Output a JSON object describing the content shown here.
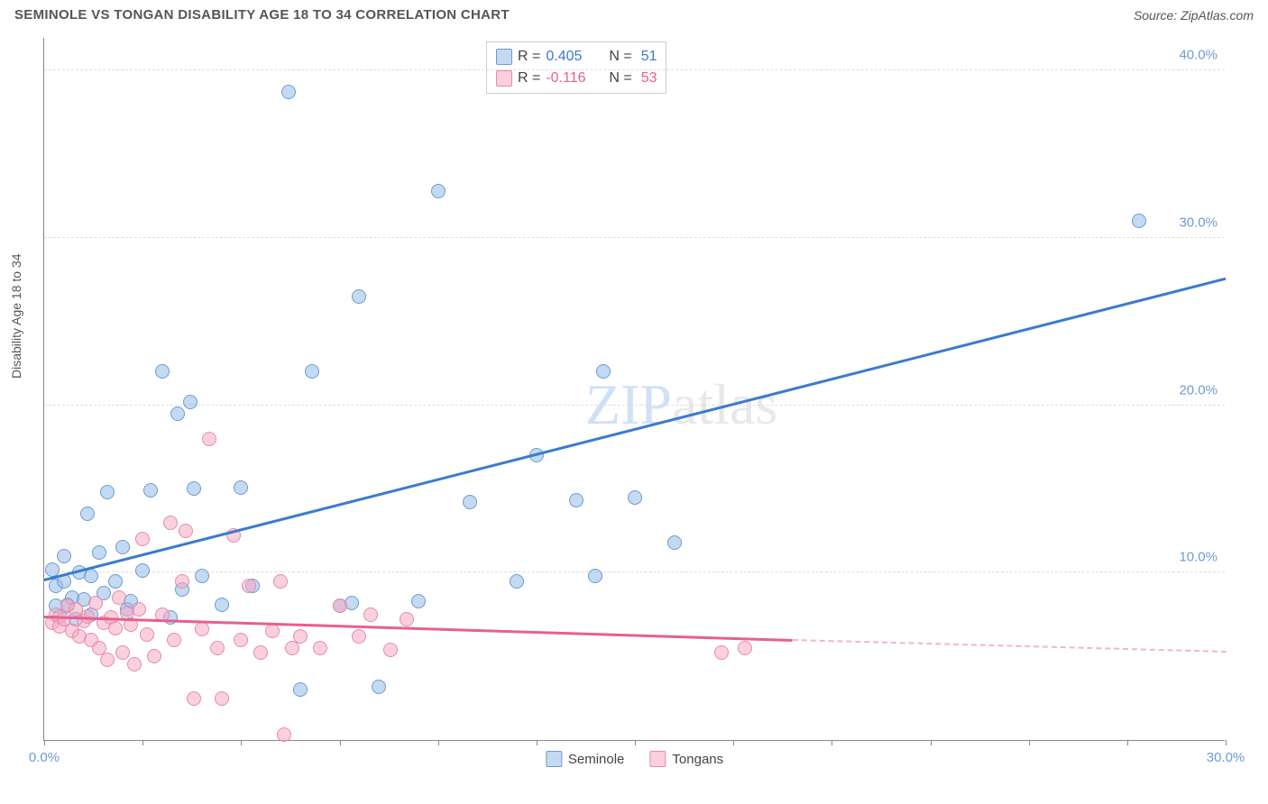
{
  "title": "SEMINOLE VS TONGAN DISABILITY AGE 18 TO 34 CORRELATION CHART",
  "source": "Source: ZipAtlas.com",
  "y_axis_label": "Disability Age 18 to 34",
  "watermark": {
    "part1": "ZIP",
    "part2": "atlas"
  },
  "chart": {
    "type": "scatter",
    "xlim": [
      0,
      30
    ],
    "ylim": [
      0,
      42
    ],
    "x_ticks": [
      0,
      2.5,
      5,
      7.5,
      10,
      12.5,
      15,
      17.5,
      20,
      22.5,
      25,
      27.5,
      30
    ],
    "x_tick_labels": {
      "0": "0.0%",
      "30": "30.0%"
    },
    "y_gridlines": [
      10,
      20,
      30,
      40
    ],
    "y_tick_labels": {
      "10": "10.0%",
      "20": "20.0%",
      "30": "30.0%",
      "40": "40.0%"
    },
    "axis_label_color": "#6b9bd8",
    "grid_color": "#dddddd",
    "series": [
      {
        "name": "Seminole",
        "fill": "rgba(147,187,230,0.55)",
        "stroke": "#6b9bd8",
        "trend_color": "#3a7bd0",
        "trend": {
          "x1": 0,
          "y1": 9.5,
          "x2": 30,
          "y2": 27.5
        },
        "points": [
          [
            0.2,
            10.2
          ],
          [
            0.3,
            8.0
          ],
          [
            0.3,
            9.2
          ],
          [
            0.4,
            7.4
          ],
          [
            0.5,
            11.0
          ],
          [
            0.5,
            9.5
          ],
          [
            0.6,
            8.1
          ],
          [
            0.7,
            8.5
          ],
          [
            0.8,
            7.2
          ],
          [
            0.9,
            10.0
          ],
          [
            1.0,
            8.4
          ],
          [
            1.1,
            13.5
          ],
          [
            1.2,
            9.8
          ],
          [
            1.2,
            7.5
          ],
          [
            1.4,
            11.2
          ],
          [
            1.5,
            8.8
          ],
          [
            1.6,
            14.8
          ],
          [
            1.8,
            9.5
          ],
          [
            2.0,
            11.5
          ],
          [
            2.1,
            7.8
          ],
          [
            2.2,
            8.3
          ],
          [
            2.5,
            10.1
          ],
          [
            2.7,
            14.9
          ],
          [
            3.0,
            22.0
          ],
          [
            3.2,
            7.3
          ],
          [
            3.4,
            19.5
          ],
          [
            3.5,
            9.0
          ],
          [
            3.7,
            20.2
          ],
          [
            3.8,
            15.0
          ],
          [
            4.0,
            9.8
          ],
          [
            4.5,
            8.1
          ],
          [
            5.0,
            15.1
          ],
          [
            5.3,
            9.2
          ],
          [
            6.2,
            38.7
          ],
          [
            6.5,
            3.0
          ],
          [
            6.8,
            22.0
          ],
          [
            7.5,
            8.0
          ],
          [
            7.8,
            8.2
          ],
          [
            8.0,
            26.5
          ],
          [
            8.5,
            3.2
          ],
          [
            9.5,
            8.3
          ],
          [
            10.0,
            32.8
          ],
          [
            10.8,
            14.2
          ],
          [
            12.0,
            9.5
          ],
          [
            12.5,
            17.0
          ],
          [
            13.5,
            14.3
          ],
          [
            14.0,
            9.8
          ],
          [
            14.2,
            22.0
          ],
          [
            15.0,
            14.5
          ],
          [
            16.0,
            11.8
          ],
          [
            27.8,
            31.0
          ]
        ]
      },
      {
        "name": "Tongans",
        "fill": "rgba(245,170,195,0.55)",
        "stroke": "#e88aa8",
        "trend_color": "#e85f8e",
        "trend": {
          "x1": 0,
          "y1": 7.3,
          "x2": 19,
          "y2": 5.9,
          "dash_to_x": 30,
          "dash_to_y": 5.2
        },
        "points": [
          [
            0.2,
            7.0
          ],
          [
            0.3,
            7.5
          ],
          [
            0.4,
            6.8
          ],
          [
            0.5,
            7.2
          ],
          [
            0.6,
            8.0
          ],
          [
            0.7,
            6.5
          ],
          [
            0.8,
            7.8
          ],
          [
            0.9,
            6.2
          ],
          [
            1.0,
            7.1
          ],
          [
            1.1,
            7.4
          ],
          [
            1.2,
            6.0
          ],
          [
            1.3,
            8.2
          ],
          [
            1.4,
            5.5
          ],
          [
            1.5,
            7.0
          ],
          [
            1.6,
            4.8
          ],
          [
            1.7,
            7.3
          ],
          [
            1.8,
            6.7
          ],
          [
            1.9,
            8.5
          ],
          [
            2.0,
            5.2
          ],
          [
            2.1,
            7.6
          ],
          [
            2.2,
            6.9
          ],
          [
            2.3,
            4.5
          ],
          [
            2.4,
            7.8
          ],
          [
            2.5,
            12.0
          ],
          [
            2.6,
            6.3
          ],
          [
            2.8,
            5.0
          ],
          [
            3.0,
            7.5
          ],
          [
            3.2,
            13.0
          ],
          [
            3.3,
            6.0
          ],
          [
            3.5,
            9.5
          ],
          [
            3.6,
            12.5
          ],
          [
            3.8,
            2.5
          ],
          [
            4.0,
            6.6
          ],
          [
            4.2,
            18.0
          ],
          [
            4.4,
            5.5
          ],
          [
            4.5,
            2.5
          ],
          [
            4.8,
            12.2
          ],
          [
            5.0,
            6.0
          ],
          [
            5.2,
            9.2
          ],
          [
            5.5,
            5.2
          ],
          [
            5.8,
            6.5
          ],
          [
            6.0,
            9.5
          ],
          [
            6.1,
            0.3
          ],
          [
            6.3,
            5.5
          ],
          [
            6.5,
            6.2
          ],
          [
            7.0,
            5.5
          ],
          [
            7.5,
            8.0
          ],
          [
            8.0,
            6.2
          ],
          [
            8.3,
            7.5
          ],
          [
            8.8,
            5.4
          ],
          [
            9.2,
            7.2
          ],
          [
            17.2,
            5.2
          ],
          [
            17.8,
            5.5
          ]
        ]
      }
    ]
  },
  "stats": [
    {
      "series": 0,
      "r_label": "R =",
      "r": "0.405",
      "n_label": "N =",
      "n": "51"
    },
    {
      "series": 1,
      "r_label": "R =",
      "r": "-0.116",
      "n_label": "N =",
      "n": "53"
    }
  ],
  "legend": [
    {
      "label": "Seminole",
      "series": 0
    },
    {
      "label": "Tongans",
      "series": 1
    }
  ]
}
